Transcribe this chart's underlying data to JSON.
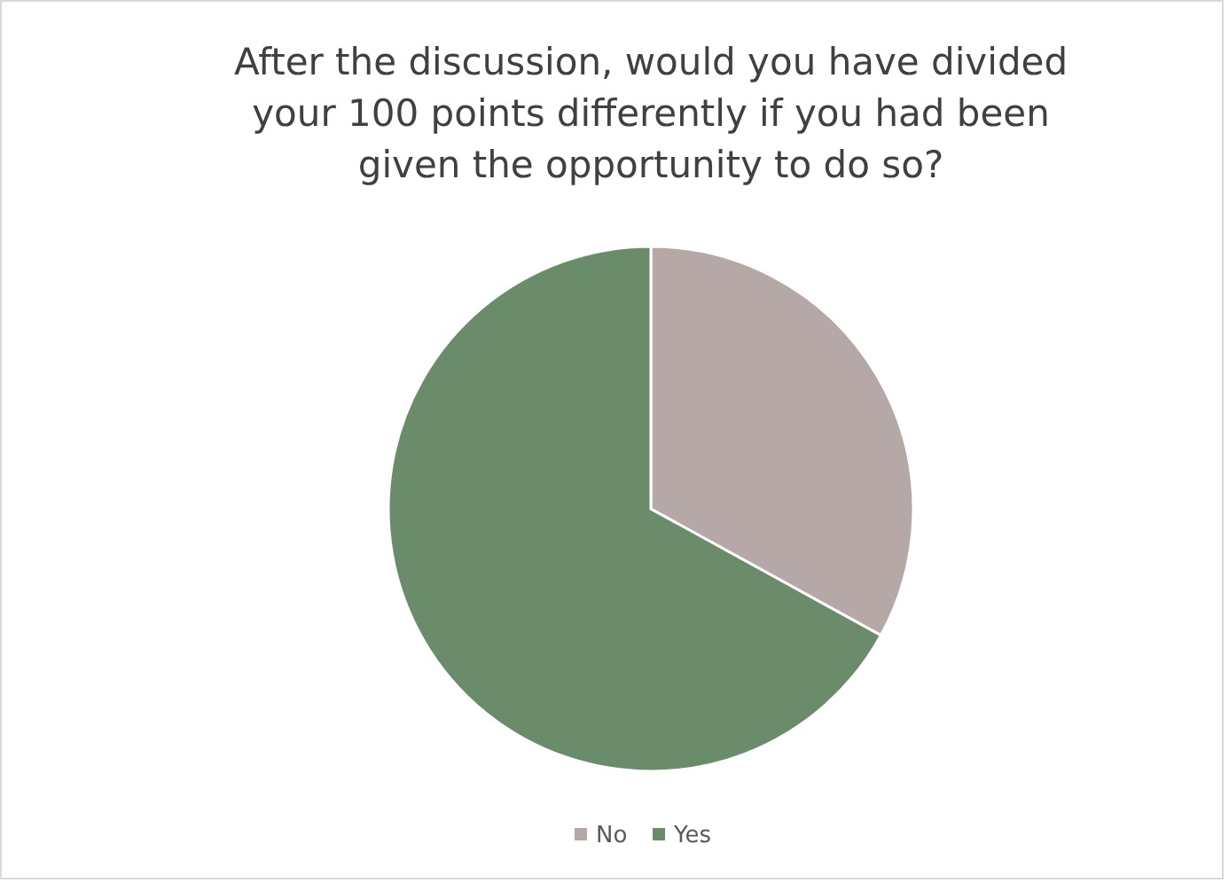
{
  "chart_data": {
    "type": "pie",
    "title": "After the discussion, would you have divided your 100 points differently if you had been given the opportunity to do so?",
    "categories": [
      "No",
      "Yes"
    ],
    "values": [
      33,
      67
    ],
    "colors": [
      "#b5a8a7",
      "#6b8c6b"
    ],
    "legend": "bottom"
  }
}
